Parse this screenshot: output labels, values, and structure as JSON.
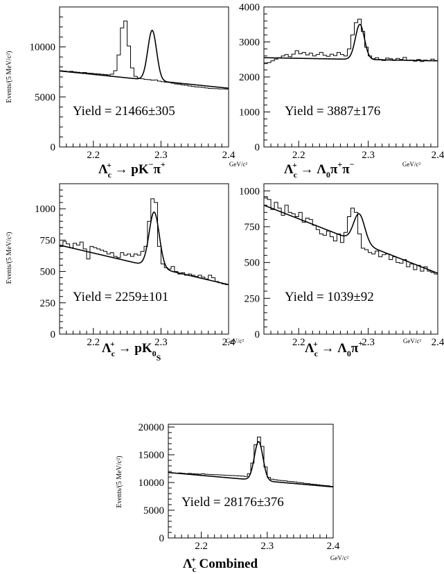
{
  "chart_data": [
    {
      "type": "line",
      "ylabel": "Events/(5 MeV/c²)",
      "x_unit": "GeV/c²",
      "decay": [
        "Λ",
        "c",
        "+",
        " → pK",
        "−",
        "",
        "π",
        "+",
        ""
      ],
      "yield_text": "Yield = 21466±305",
      "xlim": [
        2.15,
        2.4
      ],
      "ylim": [
        0,
        14000
      ],
      "xticks": [
        "2.2",
        "2.3",
        "2.4"
      ],
      "xtick_values": [
        2.2,
        2.3,
        2.4
      ],
      "yticks": [
        "0",
        "5000",
        "10000"
      ],
      "ytick_values": [
        0,
        5000,
        10000
      ],
      "signal": {
        "mean": 2.287,
        "sigma": 0.0065,
        "amp": 5000
      },
      "background": {
        "a": 7600,
        "b": -6900
      },
      "histogram": [
        7620,
        7590,
        7540,
        7560,
        7500,
        7470,
        7430,
        7450,
        7380,
        7360,
        7330,
        7300,
        7270,
        7240,
        7210,
        7280,
        7620,
        9200,
        11900,
        12600,
        10100,
        7900,
        7060,
        6900,
        6820,
        6750,
        6730,
        6680,
        6700,
        6580,
        6520,
        6480,
        6450,
        6380,
        6300,
        6270,
        6200,
        6170,
        6100,
        6050,
        6000,
        5990,
        5950,
        5900,
        5860,
        5840,
        5830,
        5800,
        5800,
        5780
      ]
    },
    {
      "type": "line",
      "ylabel": "",
      "x_unit": "GeV/c²",
      "decay": [
        "Λ",
        "c",
        "+",
        " → Λ",
        "",
        "0",
        "π",
        "+",
        "",
        "π",
        "−",
        ""
      ],
      "yield_text": "Yield = 3887±176",
      "xlim": [
        2.15,
        2.4
      ],
      "ylim": [
        0,
        4000
      ],
      "xticks": [
        "2.2",
        "2.3",
        "2.4"
      ],
      "xtick_values": [
        2.2,
        2.3,
        2.4
      ],
      "yticks": [
        "0",
        "1000",
        "2000",
        "3000",
        "4000"
      ],
      "ytick_values": [
        0,
        1000,
        2000,
        3000,
        4000
      ],
      "signal": {
        "mean": 2.288,
        "sigma": 0.0065,
        "amp": 1000
      },
      "background": {
        "a": 2550,
        "b": -360
      },
      "histogram": [
        2380,
        2410,
        2460,
        2510,
        2550,
        2600,
        2640,
        2580,
        2650,
        2750,
        2660,
        2700,
        2630,
        2680,
        2600,
        2640,
        2700,
        2620,
        2590,
        2650,
        2610,
        2700,
        2640,
        2600,
        2800,
        3200,
        3550,
        3650,
        3300,
        2850,
        2600,
        2520,
        2550,
        2500,
        2470,
        2540,
        2520,
        2470,
        2530,
        2500,
        2560,
        2470,
        2480,
        2450,
        2500,
        2440,
        2480,
        2460,
        2510,
        2470
      ]
    },
    {
      "type": "line",
      "ylabel": "Events/(5 MeV/c²)",
      "x_unit": "GeV/c²",
      "decay": [
        "Λ",
        "c",
        "+",
        " → pK",
        "",
        "0",
        "",
        "",
        "S"
      ],
      "yield_text": "Yield = 2259±101",
      "xlim": [
        2.15,
        2.4
      ],
      "ylim": [
        0,
        1200
      ],
      "xticks": [
        "2.2",
        "2.3",
        "2.4"
      ],
      "xtick_values": [
        2.2,
        2.3,
        2.4
      ],
      "yticks": [
        "0",
        "250",
        "500",
        "750",
        "1000"
      ],
      "ytick_values": [
        0,
        250,
        500,
        750,
        1000
      ],
      "signal": {
        "mean": 2.29,
        "sigma": 0.0075,
        "amp": 440
      },
      "background": {
        "a": 710,
        "b": -1260
      },
      "histogram": [
        700,
        740,
        720,
        690,
        725,
        710,
        735,
        680,
        600,
        700,
        690,
        680,
        670,
        660,
        640,
        650,
        620,
        610,
        650,
        630,
        640,
        620,
        640,
        630,
        660,
        700,
        900,
        1080,
        1050,
        700,
        560,
        530,
        520,
        540,
        500,
        480,
        490,
        470,
        480,
        470,
        460,
        470,
        455,
        440,
        470,
        450,
        420,
        410,
        400,
        395
      ]
    },
    {
      "type": "line",
      "ylabel": "",
      "x_unit": "GeV/c²",
      "decay": [
        "Λ",
        "c",
        "+",
        " → Λ",
        "",
        "0",
        "π",
        "+",
        ""
      ],
      "yield_text": "Yield = 1039±92",
      "xlim": [
        2.15,
        2.4
      ],
      "ylim": [
        0,
        1050
      ],
      "xticks": [
        "2.2",
        "2.3",
        "2.4"
      ],
      "xtick_values": [
        2.2,
        2.3,
        2.4
      ],
      "yticks": [
        "0",
        "250",
        "500",
        "750",
        "1000"
      ],
      "ytick_values": [
        0,
        250,
        500,
        750,
        1000
      ],
      "signal": {
        "mean": 2.287,
        "sigma": 0.008,
        "amp": 200
      },
      "background": {
        "a": 900,
        "b": -1900
      },
      "histogram": [
        960,
        940,
        870,
        920,
        880,
        830,
        900,
        850,
        840,
        820,
        850,
        780,
        810,
        800,
        760,
        730,
        700,
        690,
        720,
        680,
        650,
        700,
        640,
        710,
        820,
        880,
        850,
        700,
        600,
        590,
        570,
        560,
        580,
        540,
        555,
        560,
        520,
        540,
        500,
        495,
        520,
        470,
        490,
        450,
        480,
        440,
        470,
        440,
        430,
        420
      ]
    },
    {
      "type": "line",
      "ylabel": "Events/(5 MeV/c²)",
      "x_unit": "GeV/c²",
      "decay": [
        "Λ",
        "c",
        "+",
        "  Combined"
      ],
      "yield_text": "Yield = 28176±376",
      "xlim": [
        2.15,
        2.4
      ],
      "ylim": [
        0,
        20500
      ],
      "xticks": [
        "2.2",
        "2.3",
        "2.4"
      ],
      "xtick_values": [
        2.2,
        2.3,
        2.4
      ],
      "yticks": [
        "0",
        "5000",
        "10000",
        "15000",
        "20000"
      ],
      "ytick_values": [
        0,
        5000,
        10000,
        15000,
        20000
      ],
      "signal": {
        "mean": 2.287,
        "sigma": 0.0065,
        "amp": 7000
      },
      "background": {
        "a": 11800,
        "b": -10400
      },
      "histogram": [
        11750,
        11700,
        11680,
        11720,
        11650,
        11600,
        11640,
        11580,
        11550,
        11500,
        11560,
        11480,
        11450,
        11420,
        11400,
        11380,
        11350,
        11300,
        11280,
        11250,
        11220,
        11180,
        11150,
        11100,
        11600,
        13500,
        16800,
        18200,
        16500,
        12800,
        10900,
        10600,
        10500,
        10400,
        10350,
        10300,
        10200,
        10150,
        10100,
        10000,
        9950,
        9850,
        9800,
        9700,
        9650,
        9600,
        9500,
        9450,
        9400,
        9300
      ]
    }
  ]
}
